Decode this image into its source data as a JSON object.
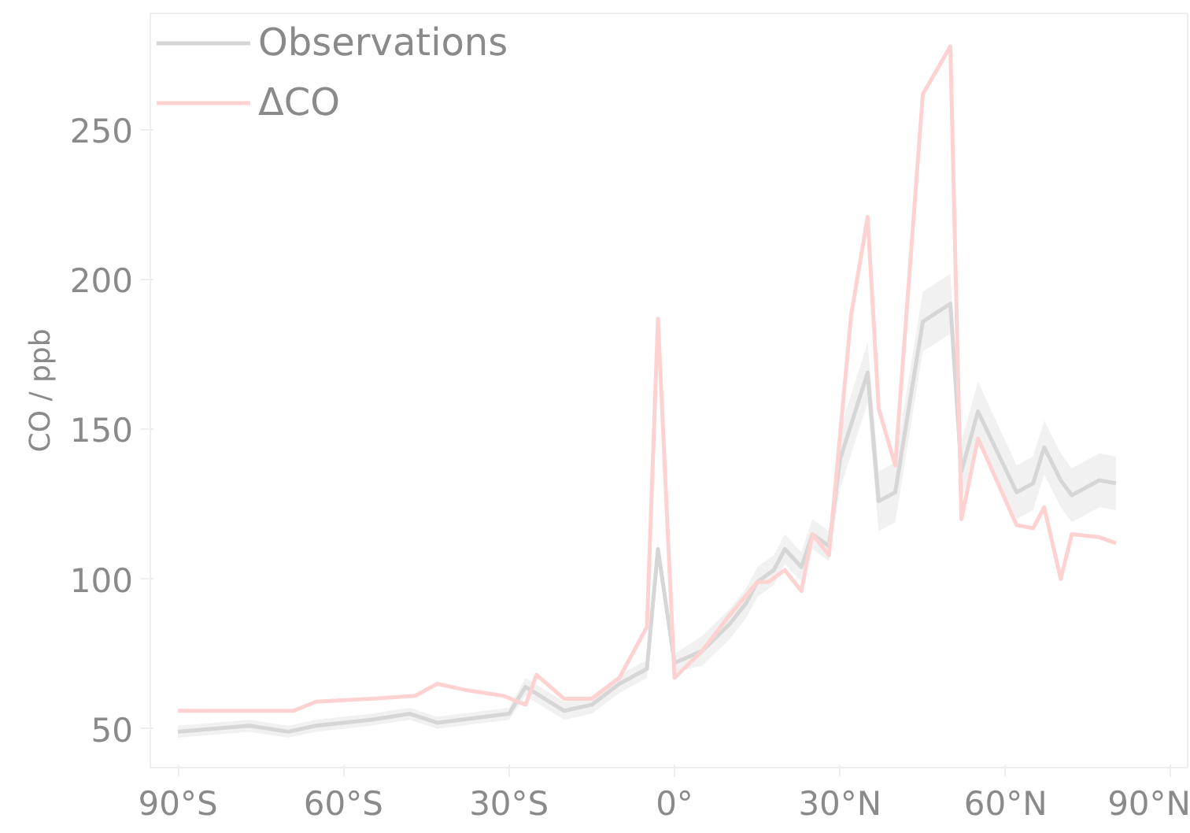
{
  "chart_data": {
    "type": "line",
    "ylabel": "CO / ppb",
    "xlim": [
      -95,
      93
    ],
    "ylim": [
      37,
      289
    ],
    "xticks": [
      {
        "value": -90,
        "label": "90°S"
      },
      {
        "value": -60,
        "label": "60°S"
      },
      {
        "value": -30,
        "label": "30°S"
      },
      {
        "value": 0,
        "label": "0°"
      },
      {
        "value": 30,
        "label": "30°N"
      },
      {
        "value": 60,
        "label": "60°N"
      },
      {
        "value": 90,
        "label": "90°N"
      }
    ],
    "yticks": [
      50,
      100,
      150,
      200,
      250
    ],
    "grid": false,
    "legend": "top left",
    "marker": "none",
    "line_style": "solid",
    "series": [
      {
        "name": "Observations",
        "color": "#d6d6d6",
        "x": [
          -90,
          -77,
          -70,
          -65,
          -55,
          -48,
          -43,
          -30,
          -27,
          -20,
          -15,
          -10,
          -5,
          -3,
          0,
          5,
          10,
          13,
          15,
          18,
          20,
          23,
          25,
          28,
          30,
          35,
          37,
          40,
          45,
          50,
          52,
          55,
          62,
          65,
          67,
          70,
          72,
          77,
          80
        ],
        "values": [
          49,
          51,
          49,
          51,
          53,
          55,
          52,
          55,
          64,
          56,
          58,
          65,
          70,
          110,
          72,
          76,
          85,
          92,
          99,
          103,
          110,
          104,
          115,
          111,
          140,
          169,
          126,
          129,
          186,
          192,
          136,
          156,
          129,
          132,
          144,
          133,
          128,
          133,
          132
        ],
        "lower": [
          47,
          49,
          47,
          49,
          51,
          53,
          50,
          53,
          61,
          53,
          55,
          62,
          67,
          107,
          69,
          71,
          80,
          87,
          94,
          98,
          105,
          99,
          110,
          106,
          130,
          159,
          116,
          119,
          176,
          182,
          126,
          146,
          120,
          123,
          135,
          124,
          119,
          124,
          123
        ],
        "upper": [
          51,
          53,
          51,
          53,
          55,
          57,
          54,
          57,
          67,
          59,
          61,
          68,
          73,
          113,
          75,
          81,
          90,
          97,
          104,
          108,
          115,
          109,
          120,
          116,
          150,
          179,
          136,
          139,
          196,
          202,
          146,
          166,
          138,
          141,
          153,
          142,
          137,
          142,
          141
        ]
      },
      {
        "name": "ΔCO",
        "color": "#ffd2d2",
        "x": [
          -90,
          -69,
          -65,
          -55,
          -47,
          -43,
          -38,
          -31,
          -27,
          -25,
          -20,
          -15,
          -10,
          -5,
          -3,
          0,
          5,
          10,
          15,
          17,
          20,
          23,
          25,
          28,
          32,
          35,
          37,
          40,
          45,
          50,
          52,
          55,
          62,
          65,
          67,
          70,
          72,
          77,
          80
        ],
        "values": [
          56,
          56,
          59,
          60,
          61,
          65,
          63,
          61,
          58,
          68,
          60,
          60,
          67,
          84,
          187,
          67,
          76,
          88,
          99,
          99,
          103,
          96,
          115,
          108,
          188,
          221,
          157,
          138,
          262,
          278,
          120,
          147,
          118,
          117,
          124,
          100,
          115,
          114,
          112
        ]
      }
    ]
  }
}
